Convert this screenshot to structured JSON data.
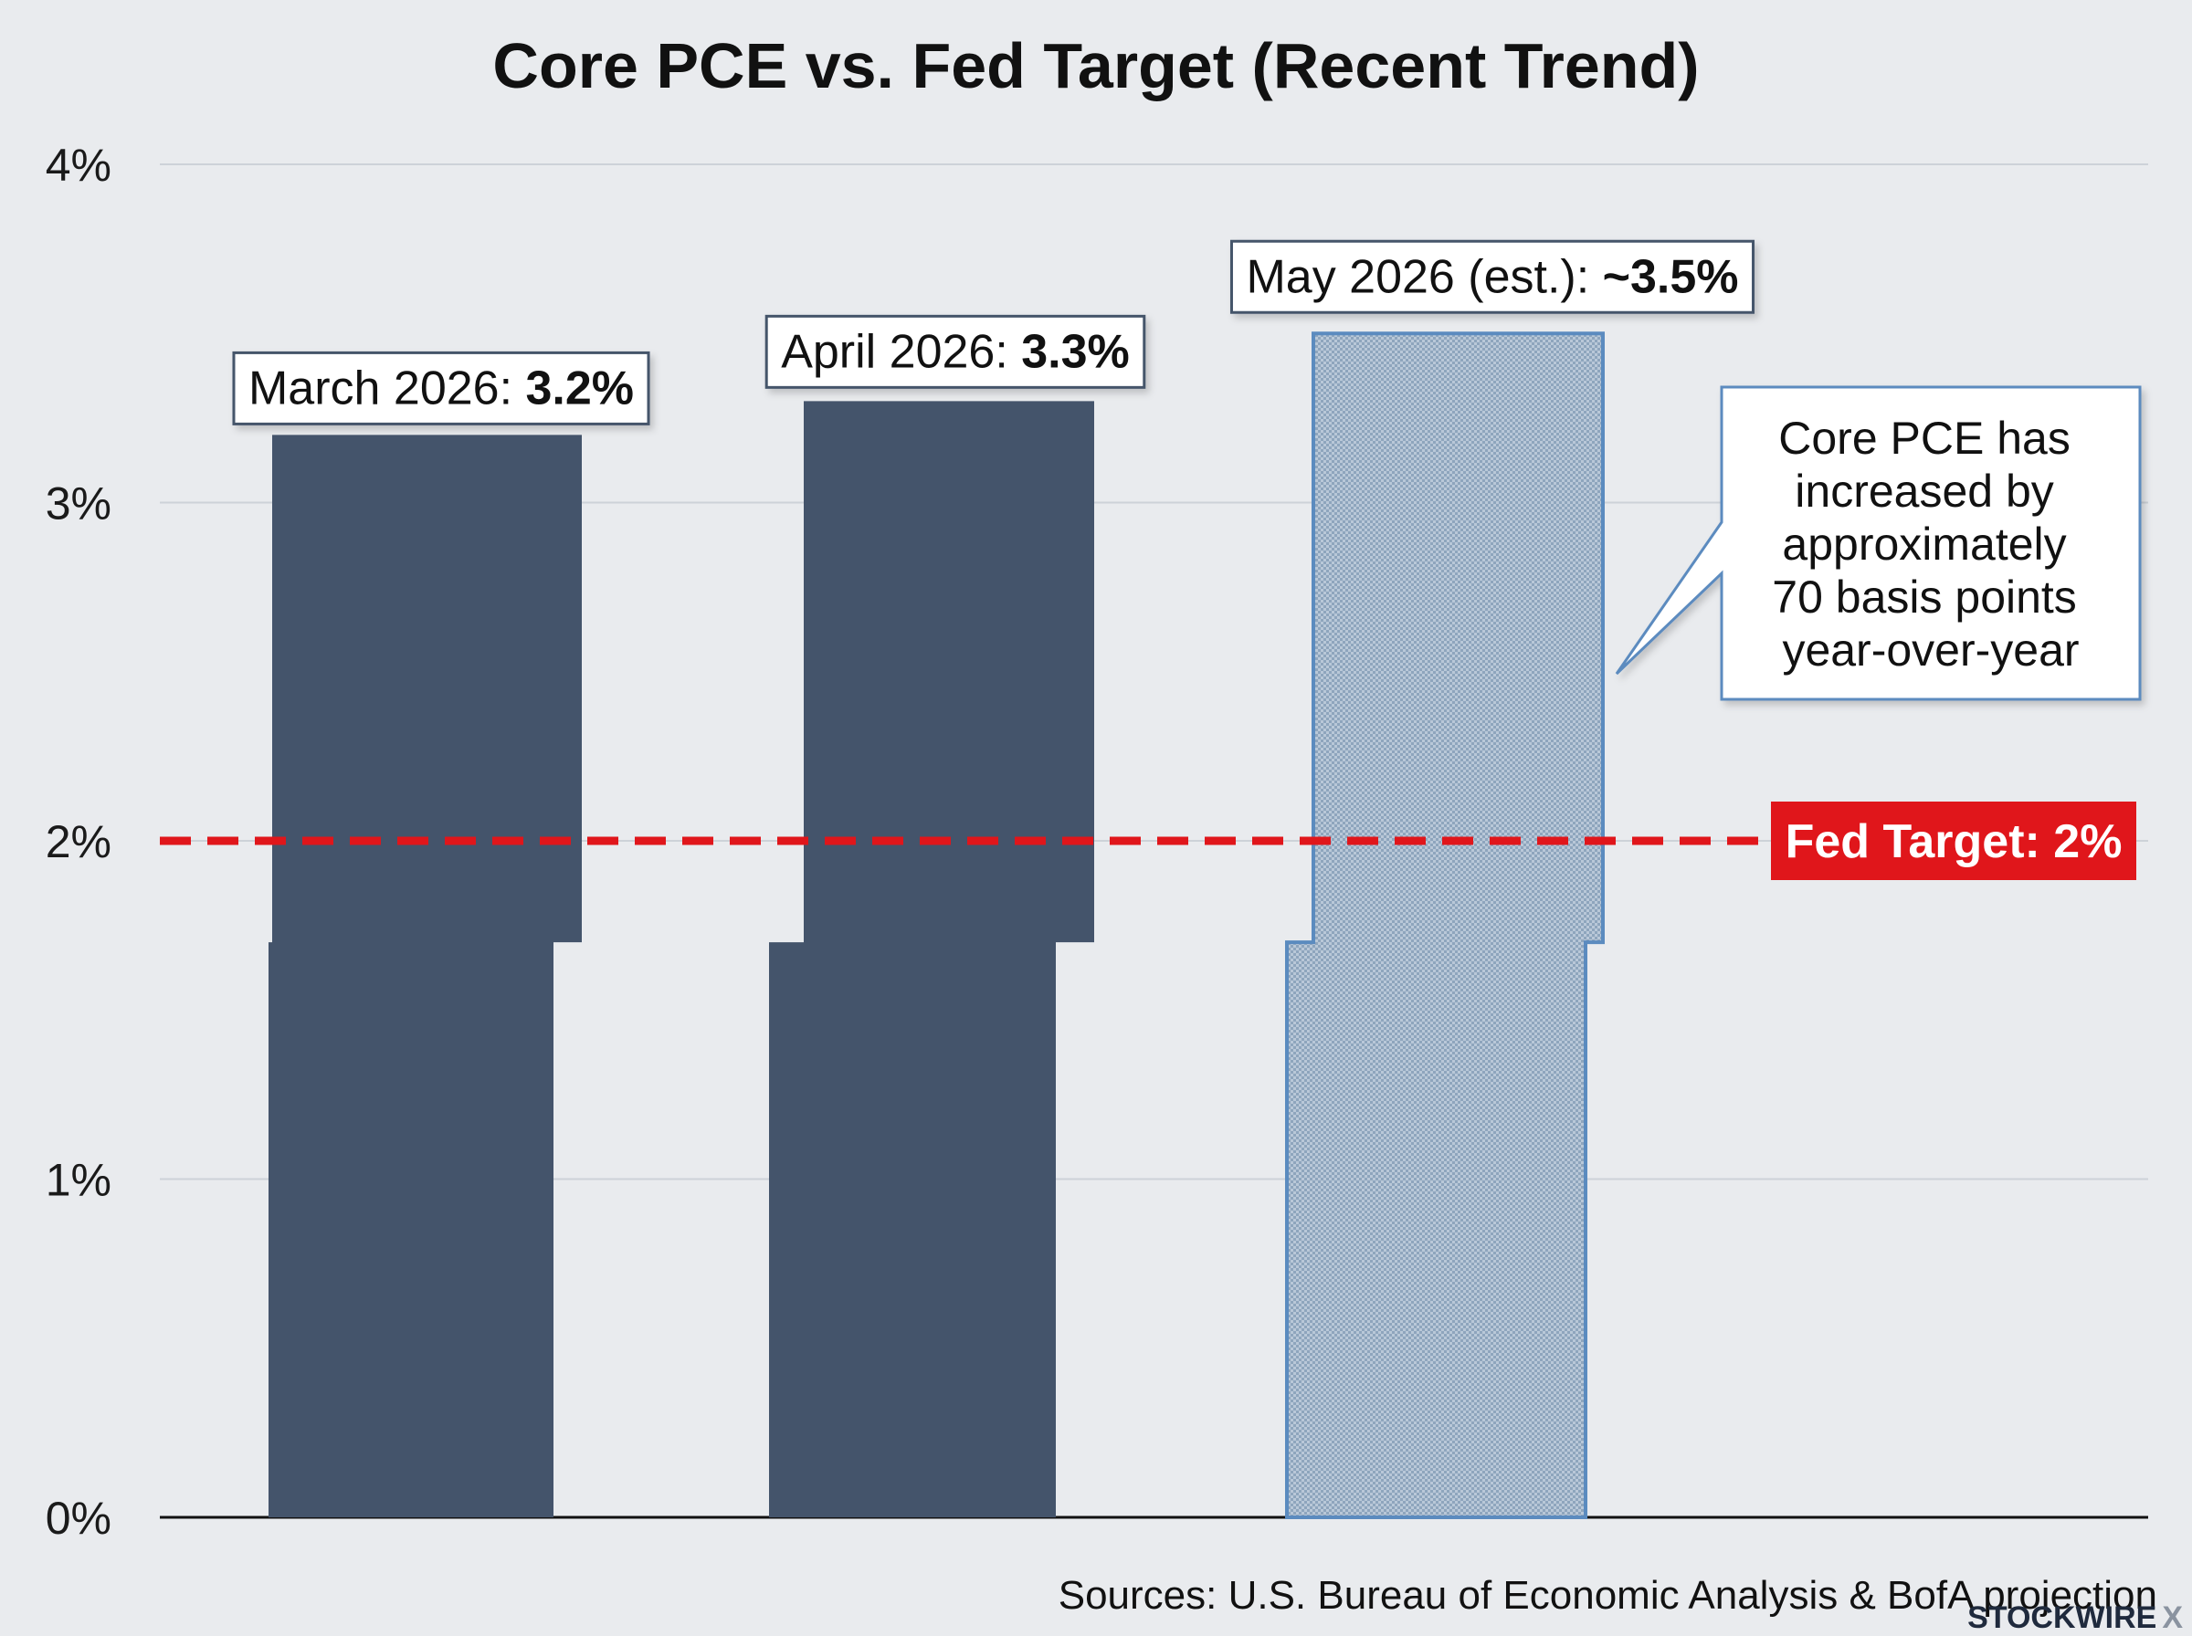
{
  "chart_data": {
    "type": "bar",
    "title": "Core PCE vs. Fed Target (Recent Trend)",
    "categories": [
      "March 2026",
      "April 2026",
      "May 2026 (est.)"
    ],
    "values": [
      3.2,
      3.3,
      3.5
    ],
    "estimated": [
      false,
      false,
      true
    ],
    "data_labels": [
      {
        "prefix": "March 2026: ",
        "value": "3.2%"
      },
      {
        "prefix": "April 2026: ",
        "value": "3.3%"
      },
      {
        "prefix": "May 2026 (est.): ",
        "value": "~3.5%"
      }
    ],
    "yticks": [
      0,
      1,
      2,
      3,
      4
    ],
    "ytick_labels": [
      "0%",
      "1%",
      "2%",
      "3%",
      "4%"
    ],
    "ylim": [
      0,
      4
    ],
    "grid": true,
    "reference_line": {
      "value": 2,
      "label": "Fed Target: 2%",
      "color": "#e0161b",
      "style": "dashed"
    },
    "annotation": {
      "lines": [
        "Core PCE has",
        "increased by",
        "approximately",
        "70 basis points",
        "year-over-year"
      ]
    },
    "colors": {
      "bar": "#44546b",
      "estimate": "#9fb3c8",
      "estimate_border": "#5b8bbf",
      "grid": "#cdd2d8",
      "axis": "#111111"
    }
  },
  "source": "Sources: U.S. Bureau of Economic Analysis & BofA projection",
  "brand": {
    "name": "STOCKWIRE",
    "mark": "X"
  }
}
